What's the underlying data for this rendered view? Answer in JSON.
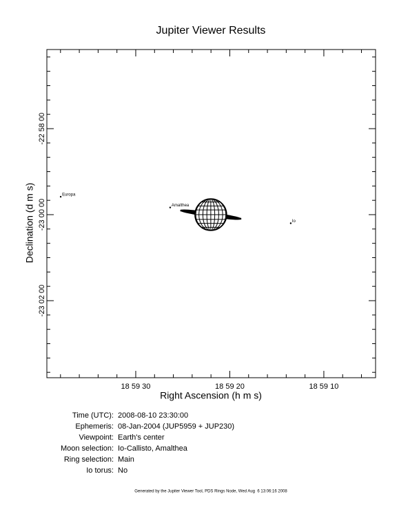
{
  "chart_data": {
    "type": "scatter",
    "title": "Jupiter Viewer Results",
    "x_label": "Right Ascension (h m s)",
    "y_label": "Declination (d m s)",
    "xlim": [
      39.45,
      4.5
    ],
    "ylim": [
      -82569.6,
      -83027.5
    ],
    "xticks": [
      {
        "value": 30,
        "label": "18 59 30"
      },
      {
        "value": 20,
        "label": "18 59 20"
      },
      {
        "value": 10,
        "label": "18 59 10"
      }
    ],
    "xminorticks": [
      38,
      36,
      34,
      32,
      28,
      26,
      24,
      22,
      18,
      16,
      14,
      12,
      8,
      6
    ],
    "yticks": [
      {
        "value": -82680,
        "label": "-22 58 00"
      },
      {
        "value": -82800,
        "label": "-23 00 00"
      },
      {
        "value": -82920,
        "label": "-23 02 00"
      }
    ],
    "yminorticks": [
      -82580,
      -82600,
      -82620,
      -82640,
      -82660,
      -82700,
      -82720,
      -82740,
      -82760,
      -82780,
      -82820,
      -82840,
      -82860,
      -82880,
      -82900,
      -82940,
      -82960,
      -82980,
      -83000,
      -83020
    ],
    "planet": {
      "x": 22.02,
      "y": -82800
    },
    "points": [
      {
        "name": "Europa",
        "x": 37.98,
        "y": -82775
      },
      {
        "name": "Amalthea",
        "x": 26.34,
        "y": -82790
      },
      {
        "name": "Io",
        "x": 13.52,
        "y": -82812
      }
    ]
  },
  "info": [
    {
      "label": "Time (UTC):",
      "value": "2008-08-10 23:30:00"
    },
    {
      "label": "Ephemeris:",
      "value": "08-Jan-2004 (JUP5959 + JUP230)"
    },
    {
      "label": "Viewpoint:",
      "value": "Earth's center"
    },
    {
      "label": "Moon selection:",
      "value": "Io-Callisto, Amalthea"
    },
    {
      "label": "Ring selection:",
      "value": "Main"
    },
    {
      "label": "Io torus:",
      "value": "No"
    }
  ],
  "footer": "Generated by the Jupiter Viewer Tool, PDS Rings Node, Wed Aug  6 13:06:16 2008"
}
